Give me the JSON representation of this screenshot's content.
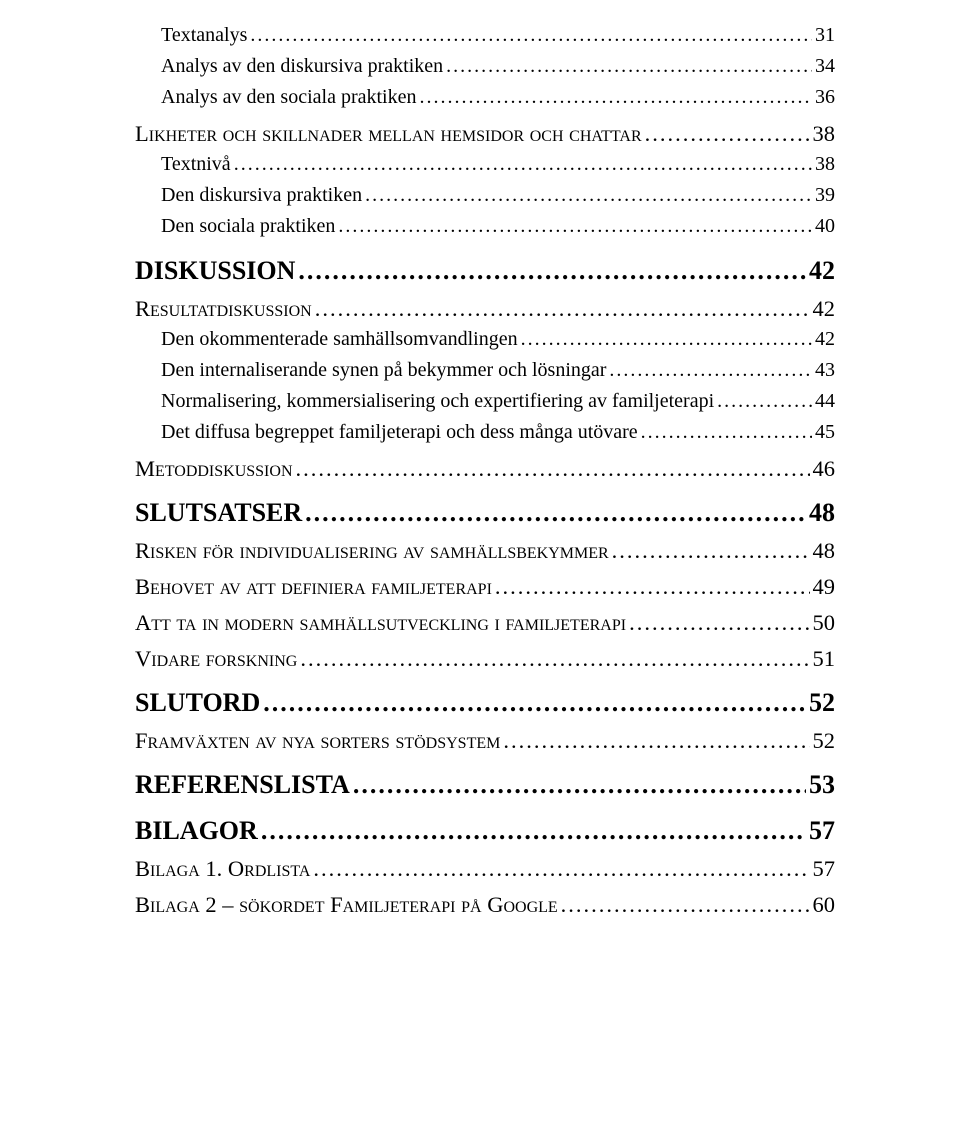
{
  "toc": [
    {
      "level": "h3",
      "label": "Textanalys",
      "page": "31"
    },
    {
      "level": "h3",
      "label": "Analys av den diskursiva praktiken",
      "page": "34"
    },
    {
      "level": "h3",
      "label": "Analys av den sociala praktiken",
      "page": "36"
    },
    {
      "level": "h2",
      "label": "Likheter och skillnader mellan hemsidor och chattar",
      "page": "38"
    },
    {
      "level": "h3",
      "label": "Textnivå",
      "page": "38"
    },
    {
      "level": "h3",
      "label": "Den diskursiva praktiken",
      "page": "39"
    },
    {
      "level": "h3",
      "label": "Den sociala praktiken",
      "page": "40"
    },
    {
      "level": "h1",
      "label": "DISKUSSION",
      "page": "42"
    },
    {
      "level": "h2",
      "label": "Resultatdiskussion",
      "page": "42"
    },
    {
      "level": "h3",
      "label": "Den okommenterade samhällsomvandlingen",
      "page": "42"
    },
    {
      "level": "h3",
      "label": "Den internaliserande synen på bekymmer och lösningar",
      "page": "43"
    },
    {
      "level": "h3",
      "label": "Normalisering, kommersialisering och expertifiering av familjeterapi",
      "page": "44"
    },
    {
      "level": "h3",
      "label": "Det diffusa begreppet familjeterapi och dess många utövare",
      "page": "45"
    },
    {
      "level": "h2",
      "label": "Metoddiskussion",
      "page": "46"
    },
    {
      "level": "h1",
      "label": "SLUTSATSER",
      "page": "48"
    },
    {
      "level": "h2",
      "label": "Risken för individualisering av samhällsbekymmer",
      "page": "48"
    },
    {
      "level": "h2",
      "label": "Behovet av att definiera familjeterapi",
      "page": "49"
    },
    {
      "level": "h2",
      "label": "Att ta in modern samhällsutveckling i familjeterapi",
      "page": "50"
    },
    {
      "level": "h2",
      "label": "Vidare forskning",
      "page": "51"
    },
    {
      "level": "h1",
      "label": "SLUTORD",
      "page": "52"
    },
    {
      "level": "h2",
      "label": "Framväxten av nya sorters stödsystem",
      "page": "52"
    },
    {
      "level": "h1",
      "label": "REFERENSLISTA",
      "page": "53"
    },
    {
      "level": "h1",
      "label": "BILAGOR",
      "page": "57"
    },
    {
      "level": "h2",
      "label": "Bilaga 1. Ordlista",
      "page": "57"
    },
    {
      "level": "h2",
      "label": "Bilaga 2 – sökordet Familjeterapi på Google",
      "page": "60"
    }
  ]
}
